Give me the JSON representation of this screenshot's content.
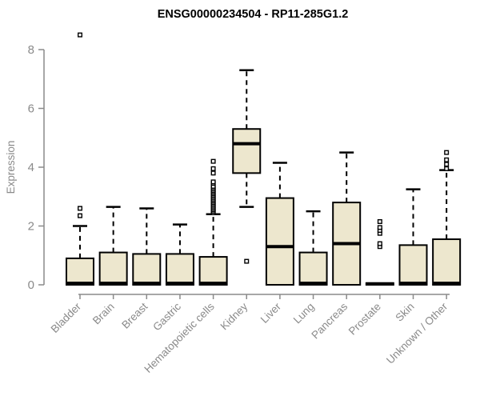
{
  "page": {
    "background_color": "#ffffff"
  },
  "colors": {
    "box_fill": "#EDE7CE",
    "box_border": "#000000",
    "median": "#000000",
    "whisker": "#000000",
    "outlier_stroke": "#000000",
    "outlier_fill": "#ffffff",
    "axis": "#8a8a8a",
    "tick_text": "#8a8a8a",
    "title_text": "#000000"
  },
  "chart_data": {
    "type": "boxplot",
    "title": "ENSG00000234504 - RP11-285G1.2",
    "xlabel": "",
    "ylabel": "Expression",
    "ylim": [
      0,
      8
    ],
    "yticks": [
      0,
      2,
      4,
      6,
      8
    ],
    "grid": false,
    "legend": "none",
    "categories": [
      "Bladder",
      "Brain",
      "Breast",
      "Gastric",
      "Hematopoietic cells",
      "Kidney",
      "Liver",
      "Lung",
      "Pancreas",
      "Prostate",
      "Skin",
      "Unknown / Other"
    ],
    "boxes": [
      {
        "category": "Bladder",
        "low": 0,
        "q1": 0,
        "median": 0.05,
        "q3": 0.9,
        "high": 2.0,
        "outliers": [
          2.35,
          2.6,
          8.5
        ]
      },
      {
        "category": "Brain",
        "low": 0,
        "q1": 0,
        "median": 0.05,
        "q3": 1.1,
        "high": 2.65,
        "outliers": []
      },
      {
        "category": "Breast",
        "low": 0,
        "q1": 0,
        "median": 0.05,
        "q3": 1.05,
        "high": 2.6,
        "outliers": []
      },
      {
        "category": "Gastric",
        "low": 0,
        "q1": 0,
        "median": 0.05,
        "q3": 1.05,
        "high": 2.05,
        "outliers": []
      },
      {
        "category": "Hematopoietic cells",
        "low": 0,
        "q1": 0,
        "median": 0.05,
        "q3": 0.95,
        "high": 2.4,
        "outliers": [
          2.45,
          2.5,
          2.55,
          2.6,
          2.65,
          2.7,
          2.75,
          2.8,
          2.85,
          2.9,
          2.95,
          3.0,
          3.05,
          3.1,
          3.15,
          3.2,
          3.25,
          3.3,
          3.35,
          3.45,
          3.5,
          3.8,
          3.95,
          4.2
        ]
      },
      {
        "category": "Kidney",
        "low": 2.65,
        "q1": 3.8,
        "median": 4.8,
        "q3": 5.3,
        "high": 7.3,
        "outliers": [
          0.8
        ]
      },
      {
        "category": "Liver",
        "low": 0,
        "q1": 0,
        "median": 1.3,
        "q3": 2.95,
        "high": 4.15,
        "outliers": []
      },
      {
        "category": "Lung",
        "low": 0,
        "q1": 0,
        "median": 0.05,
        "q3": 1.1,
        "high": 2.5,
        "outliers": []
      },
      {
        "category": "Pancreas",
        "low": 0,
        "q1": 0,
        "median": 1.4,
        "q3": 2.8,
        "high": 4.5,
        "outliers": []
      },
      {
        "category": "Prostate",
        "low": 0,
        "q1": 0,
        "median": 0.03,
        "q3": 0.06,
        "high": 0.06,
        "outliers": [
          1.3,
          1.4,
          1.75,
          1.85,
          1.95,
          2.15
        ]
      },
      {
        "category": "Skin",
        "low": 0,
        "q1": 0,
        "median": 0.05,
        "q3": 1.35,
        "high": 3.25,
        "outliers": []
      },
      {
        "category": "Unknown / Other",
        "low": 0,
        "q1": 0,
        "median": 0.05,
        "q3": 1.55,
        "high": 3.9,
        "outliers": [
          3.95,
          4.1,
          4.25,
          4.5
        ]
      }
    ]
  }
}
